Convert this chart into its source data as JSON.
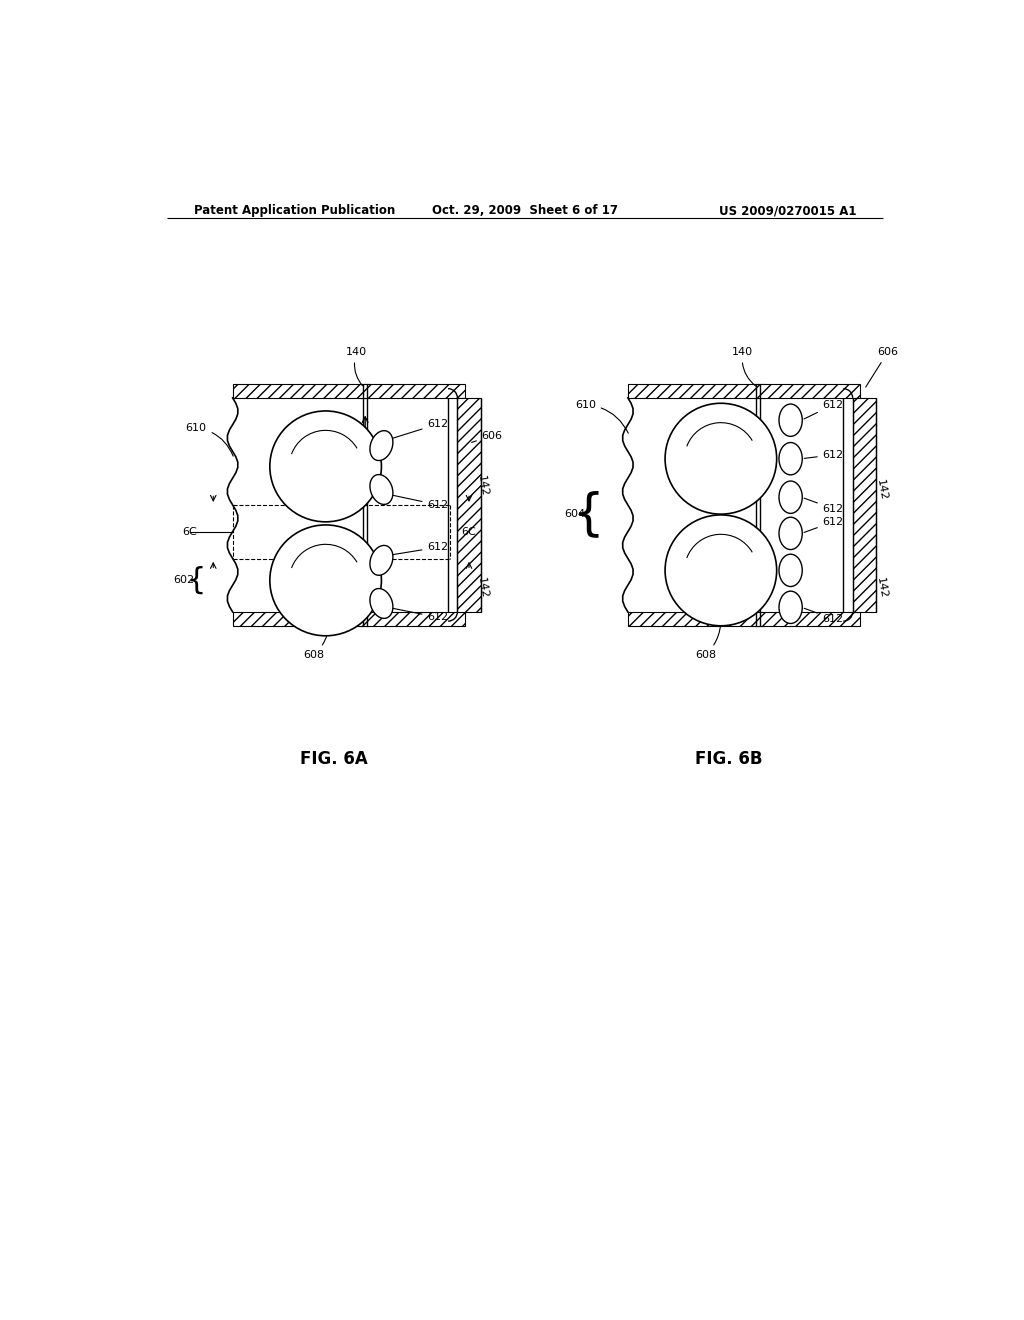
{
  "bg_color": "#ffffff",
  "header_left": "Patent Application Publication",
  "header_center": "Oct. 29, 2009  Sheet 6 of 17",
  "header_right": "US 2009/0270015 A1"
}
